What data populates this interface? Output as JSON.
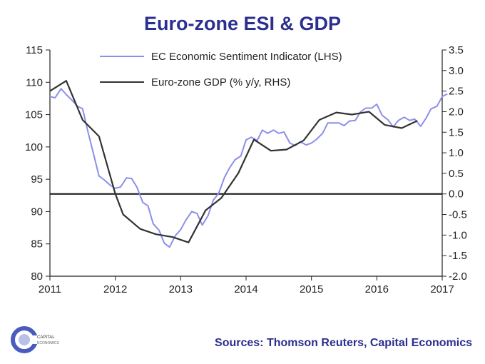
{
  "page": {
    "title": "Euro-zone ESI & GDP",
    "source": "Sources: Thomson Reuters, Capital Economics"
  },
  "logo": {
    "text_top": "CAPITAL",
    "text_bottom": "ECONOMICS",
    "colors": {
      "ring": "#4a5bbf",
      "inner": "#b8c0e8"
    }
  },
  "chart_data": {
    "type": "line",
    "title": "Euro-zone ESI & GDP",
    "x_axis": {
      "min": 2011,
      "max": 2017,
      "ticks": [
        "2011",
        "2012",
        "2013",
        "2014",
        "2015",
        "2016",
        "2017"
      ]
    },
    "y_left": {
      "min": 80,
      "max": 115,
      "step": 5,
      "ticks": [
        "80",
        "85",
        "90",
        "95",
        "100",
        "105",
        "110",
        "115"
      ]
    },
    "y_right": {
      "min": -2.0,
      "max": 3.5,
      "step": 0.5,
      "ticks": [
        "-2.0",
        "-1.5",
        "-1.0",
        "-0.5",
        "0.0",
        "0.5",
        "1.0",
        "1.5",
        "2.0",
        "2.5",
        "3.0",
        "3.5"
      ]
    },
    "zero_line_right": 0.0,
    "legend": {
      "placement": "top-center"
    },
    "series": [
      {
        "name": "EC Economic Sentiment Indicator (LHS)",
        "axis": "left",
        "color": "#8b8fe8",
        "points": [
          [
            2011.0,
            107.8
          ],
          [
            2011.08,
            107.6
          ],
          [
            2011.17,
            109.0
          ],
          [
            2011.25,
            108.1
          ],
          [
            2011.33,
            107.3
          ],
          [
            2011.42,
            106.3
          ],
          [
            2011.5,
            105.9
          ],
          [
            2011.58,
            102.4
          ],
          [
            2011.67,
            98.8
          ],
          [
            2011.75,
            95.5
          ],
          [
            2011.83,
            94.9
          ],
          [
            2011.92,
            94.1
          ],
          [
            2012.0,
            93.6
          ],
          [
            2012.08,
            93.8
          ],
          [
            2012.17,
            95.2
          ],
          [
            2012.25,
            95.1
          ],
          [
            2012.33,
            93.8
          ],
          [
            2012.42,
            91.4
          ],
          [
            2012.5,
            90.9
          ],
          [
            2012.58,
            88.1
          ],
          [
            2012.67,
            87.1
          ],
          [
            2012.75,
            85.1
          ],
          [
            2012.83,
            84.5
          ],
          [
            2012.92,
            86.3
          ],
          [
            2013.0,
            87.2
          ],
          [
            2013.08,
            88.7
          ],
          [
            2013.17,
            90.0
          ],
          [
            2013.25,
            89.7
          ],
          [
            2013.33,
            87.9
          ],
          [
            2013.42,
            89.4
          ],
          [
            2013.5,
            91.8
          ],
          [
            2013.58,
            92.8
          ],
          [
            2013.67,
            95.3
          ],
          [
            2013.75,
            96.8
          ],
          [
            2013.83,
            98.0
          ],
          [
            2013.92,
            98.6
          ],
          [
            2014.0,
            101.1
          ],
          [
            2014.08,
            101.5
          ],
          [
            2014.17,
            101.0
          ],
          [
            2014.25,
            102.6
          ],
          [
            2014.33,
            102.1
          ],
          [
            2014.42,
            102.6
          ],
          [
            2014.5,
            102.1
          ],
          [
            2014.58,
            102.3
          ],
          [
            2014.67,
            100.6
          ],
          [
            2014.75,
            100.2
          ],
          [
            2014.83,
            100.8
          ],
          [
            2014.92,
            100.3
          ],
          [
            2015.0,
            100.6
          ],
          [
            2015.08,
            101.2
          ],
          [
            2015.17,
            102.1
          ],
          [
            2015.25,
            103.7
          ],
          [
            2015.33,
            103.7
          ],
          [
            2015.42,
            103.7
          ],
          [
            2015.5,
            103.3
          ],
          [
            2015.58,
            104.0
          ],
          [
            2015.67,
            104.1
          ],
          [
            2015.75,
            105.4
          ],
          [
            2015.83,
            106.0
          ],
          [
            2015.92,
            106.0
          ],
          [
            2016.0,
            106.6
          ],
          [
            2016.08,
            104.9
          ],
          [
            2016.17,
            104.2
          ],
          [
            2016.25,
            103.1
          ],
          [
            2016.33,
            104.1
          ],
          [
            2016.42,
            104.6
          ],
          [
            2016.5,
            104.1
          ],
          [
            2016.58,
            104.3
          ],
          [
            2016.67,
            103.2
          ],
          [
            2016.75,
            104.4
          ],
          [
            2016.83,
            105.9
          ],
          [
            2016.92,
            106.3
          ],
          [
            2017.0,
            107.8
          ],
          [
            2017.08,
            108.2
          ]
        ]
      },
      {
        "name": "Euro-zone GDP (% y/y, RHS)",
        "axis": "right",
        "color": "#333333",
        "points": [
          [
            2011.0,
            2.5
          ],
          [
            2011.25,
            2.75
          ],
          [
            2011.5,
            1.8
          ],
          [
            2011.75,
            1.4
          ],
          [
            2012.0,
            0.0
          ],
          [
            2012.12,
            -0.5
          ],
          [
            2012.38,
            -0.85
          ],
          [
            2012.62,
            -0.98
          ],
          [
            2012.88,
            -1.05
          ],
          [
            2013.12,
            -1.18
          ],
          [
            2013.38,
            -0.4
          ],
          [
            2013.62,
            -0.1
          ],
          [
            2013.88,
            0.5
          ],
          [
            2014.12,
            1.32
          ],
          [
            2014.38,
            1.05
          ],
          [
            2014.62,
            1.08
          ],
          [
            2014.88,
            1.3
          ],
          [
            2015.12,
            1.8
          ],
          [
            2015.38,
            1.98
          ],
          [
            2015.62,
            1.93
          ],
          [
            2015.88,
            2.0
          ],
          [
            2016.12,
            1.68
          ],
          [
            2016.38,
            1.6
          ],
          [
            2016.62,
            1.78
          ]
        ]
      }
    ]
  }
}
